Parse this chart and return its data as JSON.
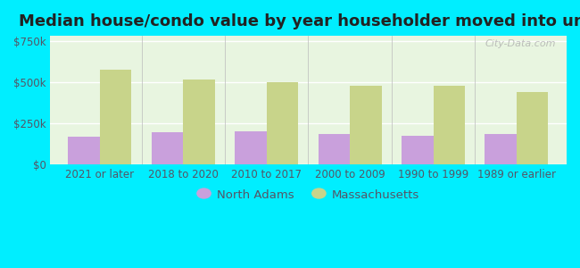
{
  "title": "Median house/condo value by year householder moved into unit",
  "categories": [
    "2021 or later",
    "2018 to 2020",
    "2010 to 2017",
    "2000 to 2009",
    "1990 to 1999",
    "1989 or earlier"
  ],
  "north_adams_values": [
    170000,
    195000,
    200000,
    185000,
    175000,
    185000
  ],
  "massachusetts_values": [
    575000,
    515000,
    500000,
    480000,
    480000,
    440000
  ],
  "north_adams_color": "#c9a0dc",
  "massachusetts_color": "#c8d48a",
  "background_color": "#00eeff",
  "plot_bg_color": "#e8f5e0",
  "yticks": [
    0,
    250000,
    500000,
    750000
  ],
  "ytick_labels": [
    "$0",
    "$250k",
    "$500k",
    "$750k"
  ],
  "legend_north_adams": "North Adams",
  "legend_massachusetts": "Massachusetts",
  "bar_width": 0.38,
  "watermark": "City-Data.com",
  "title_fontsize": 13,
  "tick_fontsize": 8.5,
  "legend_fontsize": 9.5,
  "text_color": "#555566"
}
